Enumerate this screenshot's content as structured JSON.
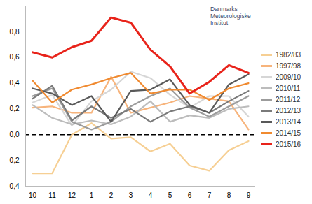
{
  "chart_data": {
    "type": "line",
    "annotation": "Danmarks Meteorologiske Institut",
    "categories": [
      "10",
      "11",
      "12",
      "1",
      "2",
      "3",
      "4",
      "5",
      "6",
      "7",
      "8",
      "9"
    ],
    "series": [
      {
        "name": "1982/83",
        "color": "#f6cf93",
        "values": [
          -0.3,
          -0.3,
          0.0,
          0.09,
          -0.03,
          -0.02,
          -0.13,
          -0.07,
          -0.24,
          -0.28,
          -0.12,
          -0.05
        ]
      },
      {
        "name": "1997/98",
        "color": "#f7b47c",
        "values": [
          0.21,
          0.22,
          0.17,
          0.17,
          0.45,
          0.17,
          0.21,
          0.25,
          0.3,
          0.28,
          0.26,
          0.04
        ]
      },
      {
        "name": "2009/10",
        "color": "#d6d6d6",
        "values": [
          0.25,
          0.31,
          0.07,
          0.26,
          0.35,
          0.49,
          0.44,
          0.31,
          0.21,
          0.3,
          0.3,
          0.14
        ]
      },
      {
        "name": "2010/11",
        "color": "#bcbcbc",
        "values": [
          0.23,
          0.13,
          0.08,
          0.11,
          0.08,
          0.14,
          0.26,
          0.1,
          0.15,
          0.13,
          0.2,
          0.22
        ]
      },
      {
        "name": "2011/12",
        "color": "#9c9c9c",
        "values": [
          0.3,
          0.36,
          0.1,
          0.04,
          0.1,
          0.22,
          0.3,
          0.36,
          0.21,
          0.14,
          0.22,
          0.3
        ]
      },
      {
        "name": "2012/13",
        "color": "#7a7a7a",
        "values": [
          0.28,
          0.38,
          0.11,
          0.22,
          0.13,
          0.2,
          0.1,
          0.18,
          0.22,
          0.17,
          0.26,
          0.34
        ]
      },
      {
        "name": "2013/14",
        "color": "#595959",
        "values": [
          0.36,
          0.32,
          0.23,
          0.3,
          0.1,
          0.34,
          0.35,
          0.43,
          0.23,
          0.17,
          0.39,
          0.47
        ]
      },
      {
        "name": "2014/15",
        "color": "#f08a30",
        "values": [
          0.42,
          0.25,
          0.35,
          0.39,
          0.44,
          0.48,
          0.32,
          0.35,
          0.35,
          0.27,
          0.36,
          0.4
        ]
      },
      {
        "name": "2015/16",
        "color": "#e8231a",
        "values": [
          0.64,
          0.6,
          0.68,
          0.73,
          0.91,
          0.87,
          0.66,
          0.53,
          0.32,
          0.41,
          0.54,
          0.48
        ]
      }
    ],
    "ylim": [
      -0.4,
      1.0
    ],
    "yticks": [
      {
        "value": -0.4,
        "label": "-0,4"
      },
      {
        "value": -0.2,
        "label": "-0,2"
      },
      {
        "value": 0,
        "label": "0,0"
      },
      {
        "value": 0.2,
        "label": "0,2"
      },
      {
        "value": 0.4,
        "label": "0,4"
      },
      {
        "value": 0.6,
        "label": "0,6"
      },
      {
        "value": 0.8,
        "label": "0,8"
      }
    ],
    "hline": 0,
    "grid": false,
    "legend": "right"
  }
}
